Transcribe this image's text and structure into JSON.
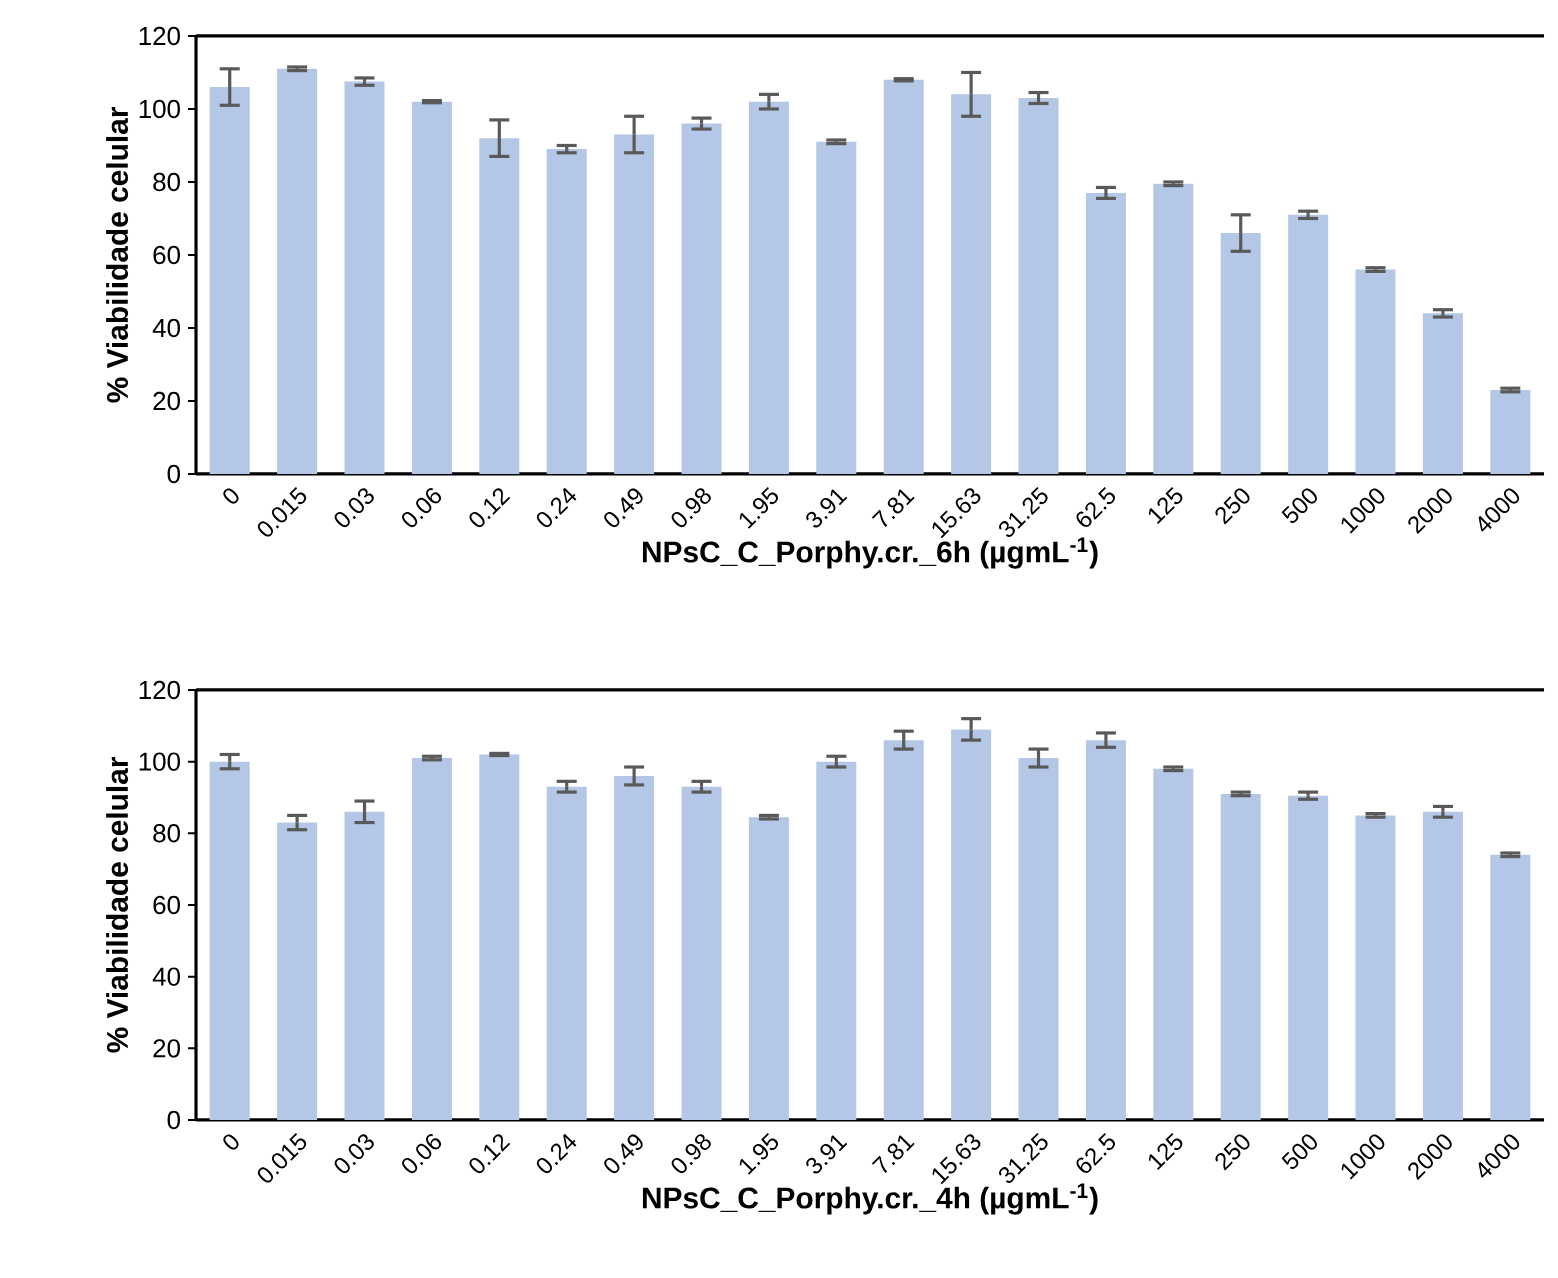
{
  "chart_data": [
    {
      "type": "bar",
      "xlabel": "NPsC_C_Porphy.cr._6h (µgmL$^{-1}$)",
      "ylabel": "% Viabilidade celular",
      "categories": [
        "0",
        "0.015",
        "0.03",
        "0.06",
        "0.12",
        "0.24",
        "0.49",
        "0.98",
        "1.95",
        "3.91",
        "7.81",
        "15.63",
        "31.25",
        "62.5",
        "125",
        "250",
        "500",
        "1000",
        "2000",
        "4000"
      ],
      "color": "#b4c7e7",
      "values": [
        106,
        111,
        107.5,
        102,
        92,
        89,
        93,
        96,
        102,
        91,
        108,
        104,
        103,
        77,
        79.5,
        66,
        71,
        56,
        44,
        23
      ],
      "errors": [
        5,
        0.5,
        1,
        0.3,
        5,
        1,
        5,
        1.5,
        2,
        0.5,
        0.3,
        6,
        1.5,
        1.5,
        0.5,
        5,
        1,
        0.5,
        1,
        0.5
      ],
      "ylim": [
        0,
        120
      ],
      "yticks": [
        0,
        20,
        40,
        60,
        80,
        100,
        120
      ],
      "grid": false
    },
    {
      "type": "bar",
      "xlabel": "NPsC_C_Porphy.cr._4h (µgmL$^{-1}$)",
      "ylabel": "% Viabilidade celular",
      "categories": [
        "0",
        "0.015",
        "0.03",
        "0.06",
        "0.12",
        "0.24",
        "0.49",
        "0.98",
        "1.95",
        "3.91",
        "7.81",
        "15.63",
        "31.25",
        "62.5",
        "125",
        "250",
        "500",
        "1000",
        "2000",
        "4000"
      ],
      "color": "#b4c7e7",
      "values": [
        100,
        83,
        86,
        101,
        102,
        93,
        96,
        93,
        84.5,
        100,
        106,
        109,
        101,
        106,
        98,
        91,
        90.5,
        85,
        86,
        74
      ],
      "errors": [
        2,
        2,
        3,
        0.5,
        0.3,
        1.5,
        2.5,
        1.5,
        0.5,
        1.5,
        2.5,
        3,
        2.5,
        2,
        0.5,
        0.5,
        1,
        0.5,
        1.5,
        0.5
      ],
      "ylim": [
        0,
        120
      ],
      "yticks": [
        0,
        20,
        40,
        60,
        80,
        100,
        120
      ],
      "grid": false
    }
  ]
}
